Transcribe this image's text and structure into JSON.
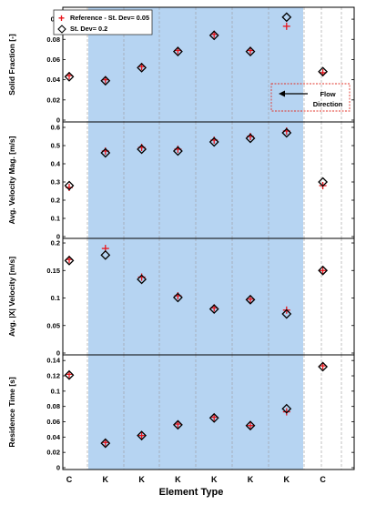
{
  "colors": {
    "reference": "#e8141b",
    "stdev": "#000000",
    "highlight": "#b6d4f2",
    "gridline": "#9a9a9a",
    "annotation_box": "#e0342b"
  },
  "figure": {
    "xlabel": "Element Type",
    "categories": [
      "C",
      "K",
      "K",
      "K",
      "K",
      "K",
      "K",
      "C"
    ],
    "highlight_range": [
      2,
      7
    ],
    "legend": {
      "reference_label": "Reference - St. Dev= 0.05",
      "stdev_label": "St. Dev= 0.2",
      "placement": "top-left"
    },
    "annotation": {
      "line1": "Flow",
      "line2": "Direction",
      "arrow": "left"
    }
  },
  "chart_data": [
    {
      "type": "scatter",
      "ylabel": "Solid Fraction [-]",
      "ylim": [
        0,
        0.11
      ],
      "yticks": [
        0,
        0.02,
        0.04,
        0.06,
        0.08,
        0.1
      ],
      "ytick_labels": [
        "0",
        "0.02",
        "0.04",
        "0.06",
        "0.08",
        "0.1"
      ],
      "x": [
        1,
        2,
        3,
        4,
        5,
        6,
        7,
        8
      ],
      "series": [
        {
          "name": "Reference - St. Dev= 0.05",
          "marker": "plus",
          "values": [
            0.044,
            0.04,
            0.053,
            0.069,
            0.085,
            0.069,
            0.093,
            0.047
          ]
        },
        {
          "name": "St. Dev= 0.2",
          "marker": "diamond",
          "values": [
            0.043,
            0.039,
            0.052,
            0.068,
            0.084,
            0.068,
            0.102,
            0.048
          ]
        }
      ]
    },
    {
      "type": "scatter",
      "ylabel": "Avg. Velocity Mag. [m/s]",
      "ylim": [
        0,
        0.62
      ],
      "yticks": [
        0,
        0.1,
        0.2,
        0.3,
        0.4,
        0.5,
        0.6
      ],
      "ytick_labels": [
        "0",
        "0.1",
        "0.2",
        "0.3",
        "0.4",
        "0.5",
        "0.6"
      ],
      "x": [
        1,
        2,
        3,
        4,
        5,
        6,
        7,
        8
      ],
      "series": [
        {
          "name": "Reference - St. Dev= 0.05",
          "marker": "plus",
          "values": [
            0.27,
            0.47,
            0.49,
            0.48,
            0.53,
            0.55,
            0.58,
            0.28
          ]
        },
        {
          "name": "St. Dev= 0.2",
          "marker": "diamond",
          "values": [
            0.28,
            0.46,
            0.48,
            0.47,
            0.52,
            0.54,
            0.57,
            0.3
          ]
        }
      ]
    },
    {
      "type": "scatter",
      "ylabel": "Avg. |X| Velocity [m/s]",
      "ylim": [
        0,
        0.205
      ],
      "yticks": [
        0,
        0.05,
        0.1,
        0.15,
        0.2
      ],
      "ytick_labels": [
        "0",
        "0.05",
        "0.1",
        "0.15",
        "0.2"
      ],
      "x": [
        1,
        2,
        3,
        4,
        5,
        6,
        7,
        8
      ],
      "series": [
        {
          "name": "Reference - St. Dev= 0.05",
          "marker": "plus",
          "values": [
            0.17,
            0.19,
            0.138,
            0.104,
            0.082,
            0.098,
            0.078,
            0.15
          ]
        },
        {
          "name": "St. Dev= 0.2",
          "marker": "diamond",
          "values": [
            0.168,
            0.178,
            0.134,
            0.101,
            0.08,
            0.097,
            0.071,
            0.15
          ]
        }
      ]
    },
    {
      "type": "scatter",
      "ylabel": "Residence Time [s]",
      "ylim": [
        0,
        0.145
      ],
      "yticks": [
        0,
        0.02,
        0.04,
        0.06,
        0.08,
        0.1,
        0.12,
        0.14
      ],
      "ytick_labels": [
        "0",
        "0.02",
        "0.04",
        "0.06",
        "0.08",
        "0.1",
        "0.12",
        "0.14"
      ],
      "x": [
        1,
        2,
        3,
        4,
        5,
        6,
        7,
        8
      ],
      "series": [
        {
          "name": "Reference - St. Dev= 0.05",
          "marker": "plus",
          "values": [
            0.122,
            0.033,
            0.042,
            0.057,
            0.066,
            0.055,
            0.073,
            0.133
          ]
        },
        {
          "name": "St. Dev= 0.2",
          "marker": "diamond",
          "values": [
            0.121,
            0.032,
            0.042,
            0.056,
            0.065,
            0.055,
            0.077,
            0.132
          ]
        }
      ]
    }
  ]
}
